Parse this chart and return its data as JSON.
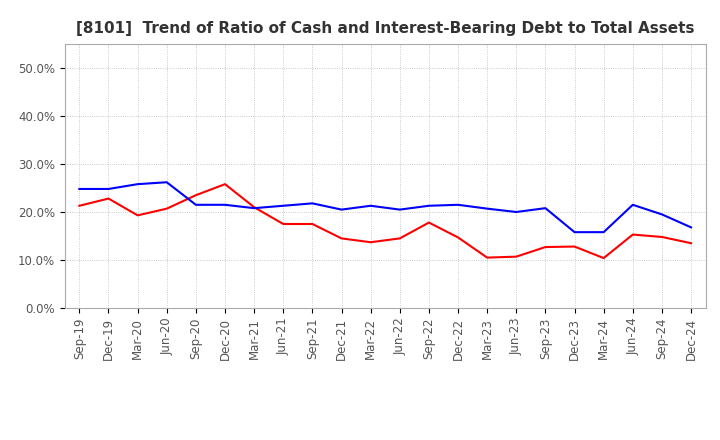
{
  "title": "[8101]  Trend of Ratio of Cash and Interest-Bearing Debt to Total Assets",
  "x_labels": [
    "Sep-19",
    "Dec-19",
    "Mar-20",
    "Jun-20",
    "Sep-20",
    "Dec-20",
    "Mar-21",
    "Jun-21",
    "Sep-21",
    "Dec-21",
    "Mar-22",
    "Jun-22",
    "Sep-22",
    "Dec-22",
    "Mar-23",
    "Jun-23",
    "Sep-23",
    "Dec-23",
    "Mar-24",
    "Jun-24",
    "Sep-24",
    "Dec-24"
  ],
  "cash": [
    0.213,
    0.228,
    0.193,
    0.207,
    0.235,
    0.258,
    0.21,
    0.175,
    0.175,
    0.145,
    0.137,
    0.145,
    0.178,
    0.147,
    0.105,
    0.107,
    0.127,
    0.128,
    0.104,
    0.153,
    0.148,
    0.135
  ],
  "ibd": [
    0.248,
    0.248,
    0.258,
    0.262,
    0.215,
    0.215,
    0.208,
    0.213,
    0.218,
    0.205,
    0.213,
    0.205,
    0.213,
    0.215,
    0.207,
    0.2,
    0.208,
    0.158,
    0.158,
    0.215,
    0.195,
    0.168
  ],
  "cash_color": "#ff0000",
  "ibd_color": "#0000ff",
  "ylim": [
    0.0,
    0.55
  ],
  "yticks": [
    0.0,
    0.1,
    0.2,
    0.3,
    0.4,
    0.5
  ],
  "background_color": "#ffffff",
  "plot_bg_color": "#ffffff",
  "grid_color": "#bbbbbb",
  "title_fontsize": 11,
  "tick_fontsize": 8.5,
  "legend_fontsize": 10
}
